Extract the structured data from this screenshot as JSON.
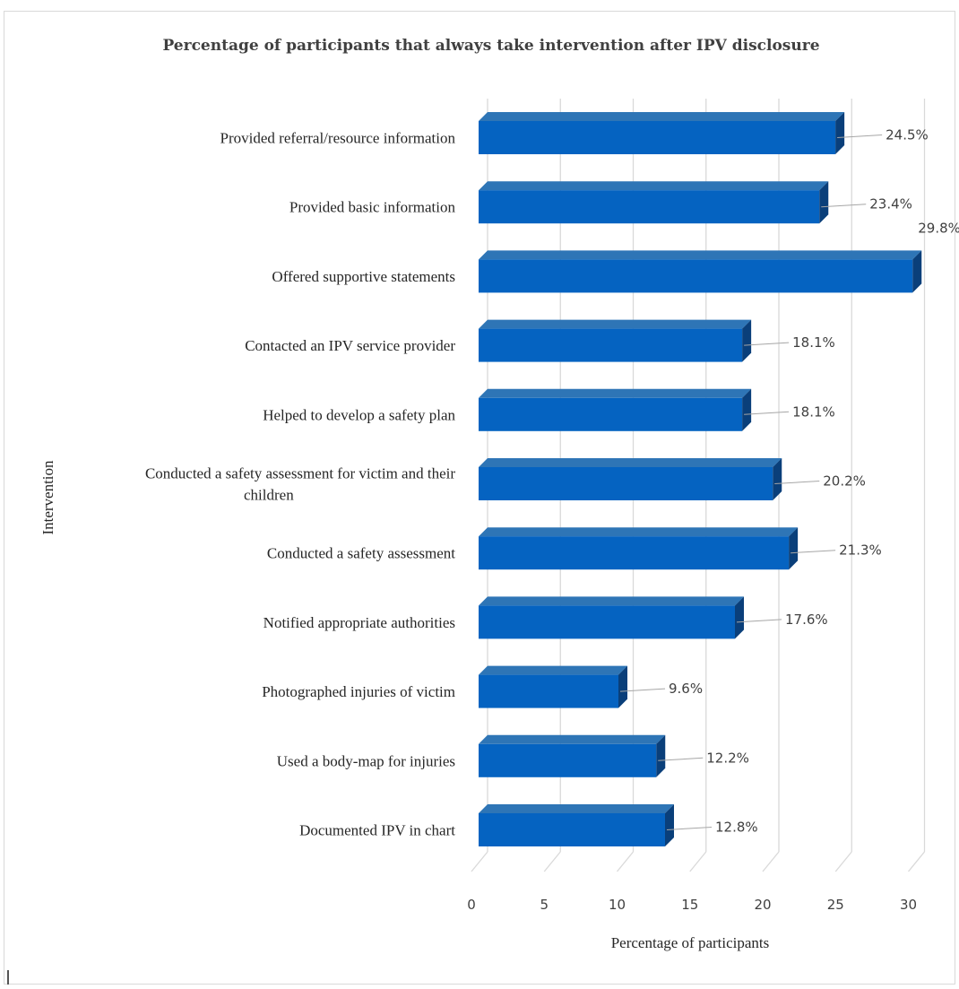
{
  "chart_data": {
    "type": "bar",
    "orientation": "horizontal",
    "title": "Percentage of participants that always take intervention after IPV disclosure",
    "xlabel": "Percentage of participants",
    "ylabel": "Intervention",
    "xlim": [
      0,
      30
    ],
    "xticks": [
      "0",
      "5",
      "10",
      "15",
      "20",
      "25",
      "30"
    ],
    "grid": true,
    "style": "3d",
    "colors": {
      "bar_front": "#0563c1",
      "bar_top": "#2e75b6",
      "bar_side": "#0a3f7a",
      "grid": "#d9d9d9"
    },
    "categories": [
      [
        "Provided referral/resource information"
      ],
      [
        "Provided basic information"
      ],
      [
        "Offered supportive statements"
      ],
      [
        "Contacted an IPV service provider"
      ],
      [
        "Helped to develop a safety plan"
      ],
      [
        "Conducted a safety assessment for victim and their",
        "children"
      ],
      [
        "Conducted a safety assessment"
      ],
      [
        "Notified appropriate authorities"
      ],
      [
        "Photographed injuries of victim"
      ],
      [
        "Used a body-map for injuries"
      ],
      [
        "Documented IPV in chart"
      ]
    ],
    "values": [
      24.5,
      23.4,
      29.8,
      18.1,
      18.1,
      20.2,
      21.3,
      17.6,
      9.6,
      12.2,
      12.8
    ],
    "data_labels": [
      "24.5%",
      "23.4%",
      "29.8%",
      "18.1%",
      "18.1%",
      "20.2%",
      "21.3%",
      "17.6%",
      "9.6%",
      "12.2%",
      "12.8%"
    ]
  }
}
